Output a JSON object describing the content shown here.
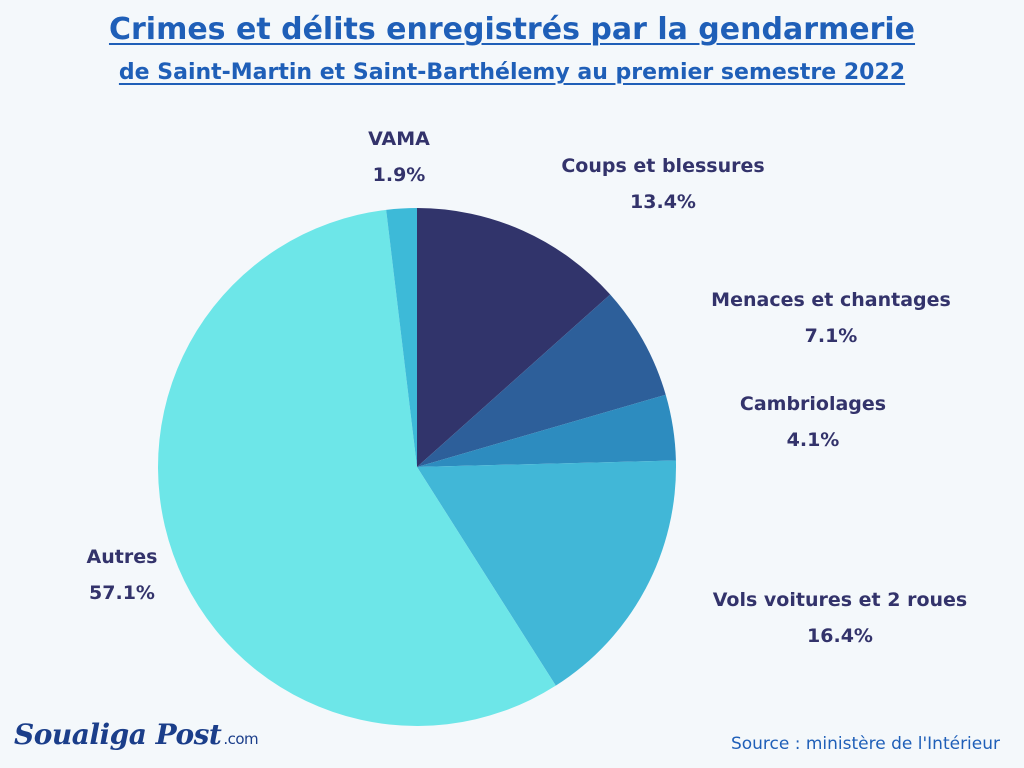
{
  "header": {
    "title": "Crimes et délits enregistrés par la gendarmerie",
    "subtitle": "de Saint-Martin et Saint-Barthélemy au premier semestre 2022"
  },
  "chart_data": {
    "type": "pie",
    "title": "Crimes et délits enregistrés par la gendarmerie",
    "subtitle": "de Saint-Martin et Saint-Barthélemy au premier semestre 2022",
    "slices": [
      {
        "label": "Coups et blessures",
        "value": 13.4,
        "value_label": "13.4%",
        "color": "#31346b"
      },
      {
        "label": "Menaces et chantages",
        "value": 7.1,
        "value_label": "7.1%",
        "color": "#2d5f9a"
      },
      {
        "label": "Cambriolages",
        "value": 4.1,
        "value_label": "4.1%",
        "color": "#2d8cbf"
      },
      {
        "label": "Vols voitures et 2 roues",
        "value": 16.4,
        "value_label": "16.4%",
        "color": "#41b7d7"
      },
      {
        "label": "Autres",
        "value": 57.1,
        "value_label": "57.1%",
        "color": "#6de6e8"
      },
      {
        "label": "VAMA",
        "value": 1.9,
        "value_label": "1.9%",
        "color": "#3dbad8"
      }
    ],
    "start_angle_deg": 0,
    "direction": "clockwise",
    "legend": "none"
  },
  "footer": {
    "logo_text": "Soualiga Post",
    "logo_suffix": ".com",
    "source": "Source : ministère de l'Intérieur"
  }
}
